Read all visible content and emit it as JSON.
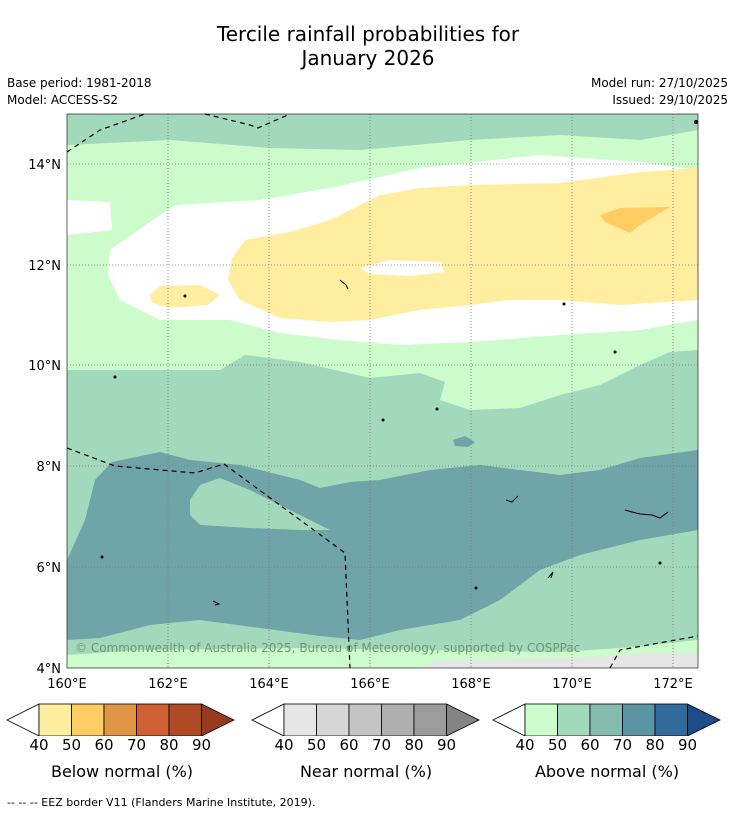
{
  "title": {
    "line1": "Tercile rainfall probabilities for",
    "line2": "January 2026"
  },
  "meta": {
    "base_period": "Base period: 1981-2018",
    "model": "Model: ACCESS-S2",
    "model_run": "Model run: 27/10/2025",
    "issued": "Issued: 29/10/2025"
  },
  "map": {
    "lat_labels": [
      "14°N",
      "12°N",
      "10°N",
      "8°N",
      "6°N",
      "4°N"
    ],
    "lon_labels": [
      "160°E",
      "162°E",
      "164°E",
      "166°E",
      "168°E",
      "170°E",
      "172°E"
    ],
    "copyright": "© Commonwealth of Australia 2025, Bureau of Meteorology, supported by COSPPac",
    "region_names": [
      "above-normal-50-north",
      "white-near-normal-band",
      "below-normal-50-band",
      "below-normal-60-patch",
      "above-normal-40-band",
      "above-normal-50-band",
      "above-normal-70-south",
      "above-normal-50-southwest",
      "near-normal-40-corner"
    ]
  },
  "colorbars": [
    {
      "id": "below",
      "label": "Below normal (%)",
      "ticks": [
        "40",
        "50",
        "60",
        "70",
        "80",
        "90"
      ],
      "colors": [
        "#ffeea0",
        "#fdcd63",
        "#e09645",
        "#cd6133",
        "#b04a26",
        "#973a1f"
      ]
    },
    {
      "id": "near",
      "label": "Near normal (%)",
      "ticks": [
        "40",
        "50",
        "60",
        "70",
        "80",
        "90"
      ],
      "colors": [
        "#e6e6e6",
        "#d6d6d6",
        "#c4c4c4",
        "#b0b0b0",
        "#9c9c9c",
        "#838383"
      ]
    },
    {
      "id": "above",
      "label": "Above normal (%)",
      "ticks": [
        "40",
        "50",
        "60",
        "70",
        "80",
        "90"
      ],
      "colors": [
        "#ccfccb",
        "#a2d8bb",
        "#86bcad",
        "#5c96a5",
        "#326b9b",
        "#1e4c86"
      ]
    }
  ],
  "colors": {
    "above40": "#ccfccb",
    "above50": "#a2d8bb",
    "above70": "#6fa4a8",
    "below40": "#ffeea0",
    "below50": "#fdcd63",
    "near40": "#e6e6e6",
    "white": "#ffffff"
  },
  "footer": "--  --  -- EEZ border V11 (Flanders Marine Institute, 2019)."
}
